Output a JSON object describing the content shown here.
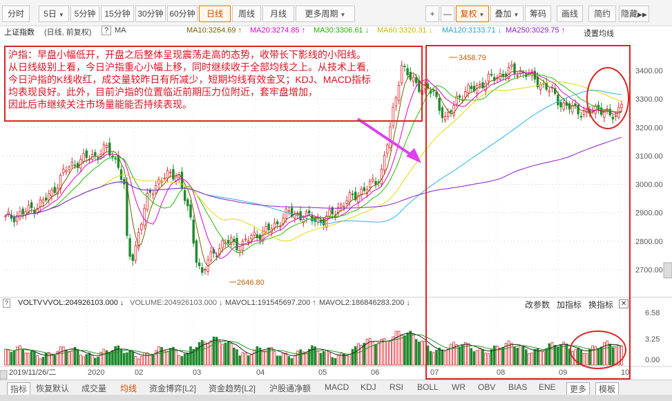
{
  "toolbar": {
    "period_tabs": [
      "分时",
      "5日",
      "5分钟",
      "15分钟",
      "30分钟",
      "60分钟",
      "日线",
      "周线",
      "月线",
      "更多周期"
    ],
    "active_period": "日线",
    "plus_label": "+",
    "minus_label": "—",
    "fq_label": "复权",
    "add_label": "叠加",
    "chip_label": "筹码",
    "draw_label": "画线",
    "simple_label": "简约",
    "hide_label": "隐藏"
  },
  "info": {
    "index_name": "上证指数",
    "mode": "(日线, 前复权)",
    "help": "?",
    "ma_tag": "MA",
    "ma10": "MA10:3264.69 ↑",
    "ma20": "MA20:3274.85 ↑",
    "ma30": "MA30:3306.61 ↓",
    "ma60": "MA60:3320.31 ↓",
    "ma120": "MA120:3133.71 ↓",
    "ma250": "MA250:3029.75 ↑",
    "settings": "设置均线"
  },
  "annotation": {
    "lines": [
      "沪指：早盘小幅低开，开盘之后整体呈现震荡走高的态势，收带长下影线的小阳线。",
      "从日线级别上看，今日沪指重心小幅上移，同时继续收于全部均线之上。从技术上看,",
      "今日沪指的K线收红，成交量较昨日有所减少，短期均线有效金叉；KDJ、MACD指标",
      "均表现良好。此外，目前沪指的位置临近前期压力位附近，套牢盘增加，",
      "因此后市继续关注市场量能能否持续表现。"
    ]
  },
  "chart_data": {
    "type": "candlestick",
    "y_ticks": [
      "3400.00",
      "3300.00",
      "3200.00",
      "3100.00",
      "3000.00",
      "2900.00",
      "2800.00",
      "2700.00"
    ],
    "ylim": [
      2620,
      3480
    ],
    "high_label": "3458.79",
    "low_label": "2646.80",
    "x_ticks": [
      "2019/11/26/二",
      "2020",
      "02",
      "03",
      "04",
      "05",
      "06",
      "07",
      "08",
      "09",
      "10"
    ],
    "ma_legend": [
      "MA10",
      "MA20",
      "MA30",
      "MA60",
      "MA120",
      "MA250"
    ],
    "vol_ticks": [
      "6.58",
      "3.25",
      "0.00"
    ]
  },
  "colors": {
    "up": "#e0262d",
    "down": "#1e8a2e",
    "ma10": "#7a5a00",
    "ma20": "#e000c8",
    "ma30": "#22c000",
    "ma60": "#e8d800",
    "ma120": "#22b4e8",
    "ma250": "#8a1bc8",
    "annot": "#d22222",
    "arrow": "#e040f0"
  },
  "volume": {
    "name": "VOLTV",
    "vvol": "VVOL:204926103.000 ↓",
    "volume": "VOLUME:204926103.000 ↓",
    "mavol1": "MAVOL1:191545697.200 ↑",
    "mavol2": "MAVOL2:186846283.200 ↓",
    "change_params": "改参数",
    "add_indicator": "加指标",
    "swap_indicator": "换指标"
  },
  "bottom_tabs": [
    "指标",
    "恢复默认",
    "成交量",
    "均线",
    "资金博弈[L2]",
    "资金趋势[L2]",
    "沪股通净额",
    "MACD",
    "KDJ",
    "RSI",
    "BOLL",
    "WR",
    "OBV",
    "BIAS",
    "ENE",
    "更多",
    "模板"
  ]
}
